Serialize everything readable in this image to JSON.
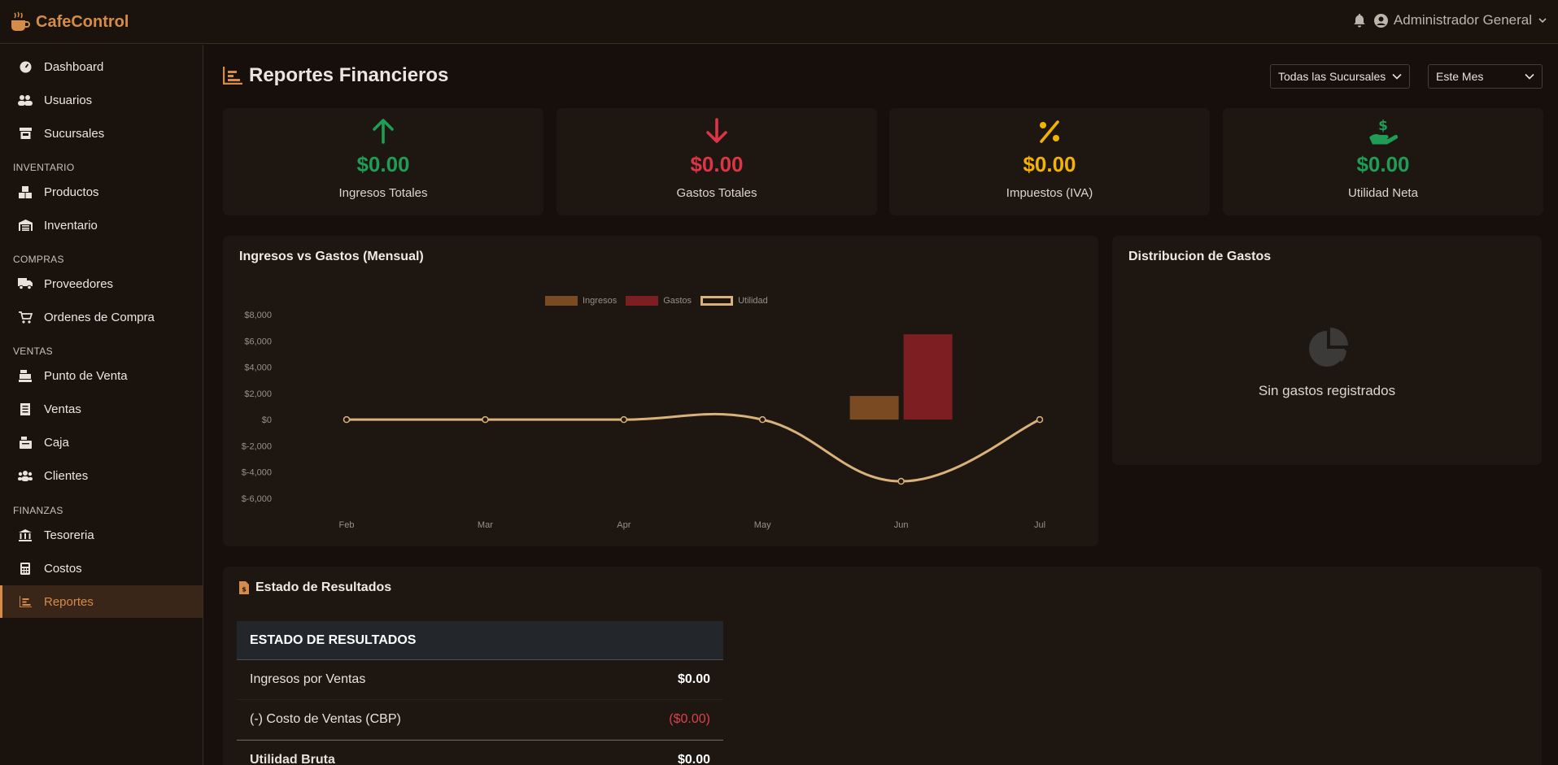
{
  "app": {
    "brand": "CafeControl"
  },
  "header": {
    "user_name": "Administrador General"
  },
  "sidebar": {
    "items": [
      {
        "label": "Dashboard"
      },
      {
        "label": "Usuarios"
      },
      {
        "label": "Sucursales"
      },
      {
        "label": "Productos"
      },
      {
        "label": "Inventario"
      },
      {
        "label": "Proveedores"
      },
      {
        "label": "Ordenes de Compra"
      },
      {
        "label": "Punto de Venta"
      },
      {
        "label": "Ventas"
      },
      {
        "label": "Caja"
      },
      {
        "label": "Clientes"
      },
      {
        "label": "Tesoreria"
      },
      {
        "label": "Costos"
      },
      {
        "label": "Reportes"
      }
    ],
    "sections": [
      "INVENTARIO",
      "COMPRAS",
      "VENTAS",
      "FINANZAS"
    ],
    "active": "Reportes"
  },
  "page": {
    "title": "Reportes Financieros",
    "branch_filter": "Todas las Sucursales",
    "period_filter": "Este Mes"
  },
  "kpis": [
    {
      "value": "$0.00",
      "label": "Ingresos Totales",
      "color": "#1f9d55",
      "icon": "arrow-up-icon"
    },
    {
      "value": "$0.00",
      "label": "Gastos Totales",
      "color": "#dc3545",
      "icon": "arrow-down-icon"
    },
    {
      "value": "$0.00",
      "label": "Impuestos (IVA)",
      "color": "#f5b301",
      "icon": "percent-icon"
    },
    {
      "value": "$0.00",
      "label": "Utilidad Neta",
      "color": "#1f9d55",
      "icon": "hand-dollar-icon"
    }
  ],
  "income_chart": {
    "title": "Ingresos vs Gastos (Mensual)"
  },
  "expense_dist": {
    "title": "Distribucion de Gastos",
    "empty_text": "Sin gastos registrados"
  },
  "income_statement": {
    "title": "Estado de Resultados",
    "header": "ESTADO DE RESULTADOS",
    "rows": [
      {
        "label": "Ingresos por Ventas",
        "amount": "$0.00"
      },
      {
        "label": "(-) Costo de Ventas (CBP)",
        "amount": "($0.00)"
      },
      {
        "label": "Utilidad Bruta",
        "amount": "$0.00"
      }
    ]
  },
  "chart_data": {
    "type": "bar",
    "categories": [
      "Feb",
      "Mar",
      "Apr",
      "May",
      "Jun",
      "Jul"
    ],
    "series": [
      {
        "name": "Ingresos",
        "type": "bar",
        "color": "#7a4a22",
        "values": [
          0,
          0,
          0,
          0,
          1800,
          0
        ]
      },
      {
        "name": "Gastos",
        "type": "bar",
        "color": "#7c1e22",
        "values": [
          0,
          0,
          0,
          0,
          6500,
          0
        ]
      },
      {
        "name": "Utilidad",
        "type": "line",
        "color": "#d8b27a",
        "values": [
          0,
          0,
          0,
          0,
          -4700,
          0
        ]
      }
    ],
    "y_ticks": [
      "$8,000",
      "$6,000",
      "$4,000",
      "$2,000",
      "$0",
      "$-2,000",
      "$-4,000",
      "$-6,000"
    ],
    "ylim": [
      -6000,
      8000
    ],
    "legend_position": "top"
  }
}
